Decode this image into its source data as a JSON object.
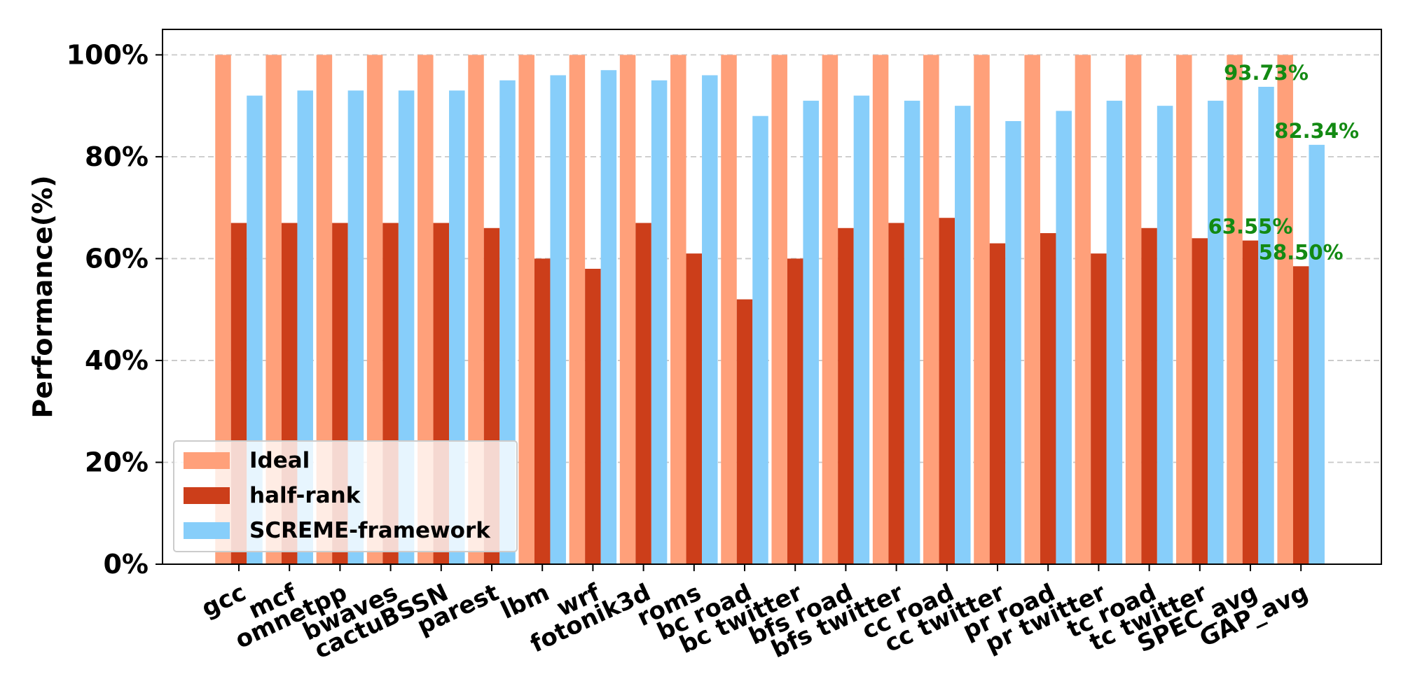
{
  "chart_data": {
    "type": "bar",
    "title": "",
    "xlabel": "",
    "ylabel": "Performance(%)",
    "ylim": [
      0,
      105
    ],
    "yticks": [
      0,
      20,
      40,
      60,
      80,
      100
    ],
    "ytick_labels": [
      "0%",
      "20%",
      "40%",
      "60%",
      "80%",
      "100%"
    ],
    "grid": "horizontal dashed",
    "legend_position": "lower-left",
    "categories": [
      "gcc",
      "mcf",
      "omnetpp",
      "bwaves",
      "cactuBSSN",
      "parest",
      "lbm",
      "wrf",
      "fotonik3d",
      "roms",
      "bc road",
      "bc twitter",
      "bfs road",
      "bfs twitter",
      "cc road",
      "cc twitter",
      "pr road",
      "pr twitter",
      "tc road",
      "tc twitter",
      "SPEC_avg",
      "GAP_avg"
    ],
    "series": [
      {
        "name": "Ideal",
        "color": "#ffa07a",
        "values": [
          100,
          100,
          100,
          100,
          100,
          100,
          100,
          100,
          100,
          100,
          100,
          100,
          100,
          100,
          100,
          100,
          100,
          100,
          100,
          100,
          100,
          100
        ]
      },
      {
        "name": "half-rank",
        "color": "#cc3e1a",
        "values": [
          67,
          67,
          67,
          67,
          67,
          66,
          60,
          58,
          67,
          61,
          52,
          60,
          66,
          67,
          68,
          63,
          65,
          61,
          66,
          64,
          63.55,
          58.5
        ]
      },
      {
        "name": "SCREME-framework",
        "color": "#87cefa",
        "values": [
          92,
          93,
          93,
          93,
          93,
          95,
          96,
          97,
          95,
          96,
          88,
          91,
          92,
          91,
          90,
          87,
          89,
          91,
          90,
          91,
          93.73,
          82.34
        ]
      }
    ],
    "annotations": [
      {
        "text": "93.73%",
        "category": "SPEC_avg",
        "series": "SCREME-framework",
        "value": 93.73
      },
      {
        "text": "63.55%",
        "category": "SPEC_avg",
        "series": "half-rank",
        "value": 63.55
      },
      {
        "text": "82.34%",
        "category": "GAP_avg",
        "series": "SCREME-framework",
        "value": 82.34
      },
      {
        "text": "58.50%",
        "category": "GAP_avg",
        "series": "half-rank",
        "value": 58.5
      }
    ],
    "annotation_color": "#138a13"
  }
}
